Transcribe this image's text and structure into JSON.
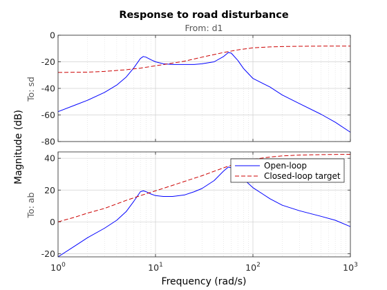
{
  "chart_data": {
    "type": "line",
    "title": "Response to road disturbance",
    "subtitle": "From: d1",
    "xlabel": "Frequency  (rad/s)",
    "ylabel": "Magnitude (dB)",
    "x_scale": "log",
    "x_ticks": [
      1,
      10,
      100,
      1000
    ],
    "x_tick_labels": [
      {
        "base": "10",
        "exp": "0"
      },
      {
        "base": "10",
        "exp": "1"
      },
      {
        "base": "10",
        "exp": "2"
      },
      {
        "base": "10",
        "exp": "3"
      }
    ],
    "xlim": [
      1,
      1000
    ],
    "grid": true,
    "legend_position": "top-right of bottom panel",
    "panels": [
      {
        "row_label": "To: sd",
        "ylim": [
          -80,
          0
        ],
        "y_ticks": [
          -80,
          -60,
          -40,
          -20,
          0
        ],
        "series": [
          {
            "name": "Open-loop",
            "color": "#0000ff",
            "dash": "solid",
            "x": [
              1,
              1.5,
              2,
              3,
              4,
              5,
              6,
              7,
              7.5,
              8,
              9,
              10,
              12,
              15,
              20,
              25,
              30,
              40,
              50,
              56,
              60,
              70,
              80,
              100,
              150,
              200,
              300,
              500,
              700,
              1000
            ],
            "y": [
              -57.5,
              -52.5,
              -49,
              -43,
              -37.5,
              -31.5,
              -24.5,
              -17.5,
              -16,
              -16.5,
              -18.5,
              -20,
              -21.5,
              -22,
              -22,
              -22,
              -21.5,
              -20,
              -16,
              -13,
              -13.5,
              -19,
              -25,
              -32.5,
              -39,
              -45,
              -51.5,
              -59.5,
              -65.5,
              -73
            ]
          },
          {
            "name": "Closed-loop target",
            "color": "#cc0000",
            "dash": "dashed",
            "x": [
              1,
              2,
              3,
              5,
              7,
              10,
              15,
              20,
              30,
              50,
              70,
              100,
              150,
              200,
              300,
              500,
              700,
              1000
            ],
            "y": [
              -28,
              -27.8,
              -27.2,
              -26,
              -24.8,
              -23,
              -21,
              -19.5,
              -16.5,
              -13,
              -11,
              -9.5,
              -8.8,
              -8.5,
              -8.3,
              -8.2,
              -8.2,
              -8.2
            ]
          }
        ]
      },
      {
        "row_label": "To: ab",
        "ylim": [
          -22,
          44
        ],
        "y_ticks": [
          -20,
          0,
          20,
          40
        ],
        "series": [
          {
            "name": "Open-loop",
            "color": "#0000ff",
            "dash": "solid",
            "x": [
              1,
              1.5,
              2,
              3,
              4,
              5,
              6,
              7,
              7.5,
              8,
              9,
              10,
              12,
              15,
              20,
              25,
              30,
              40,
              50,
              56,
              60,
              70,
              80,
              100,
              150,
              200,
              300,
              500,
              700,
              1000
            ],
            "y": [
              -22,
              -15,
              -10,
              -4,
              1,
              6.5,
              13,
              19,
              19.5,
              19,
              17.5,
              16.5,
              16,
              16,
              17,
              19,
              21,
              26,
              32,
              34.5,
              34,
              30.5,
              27,
              21.5,
              14.5,
              10.5,
              7,
              3.5,
              1,
              -3
            ]
          },
          {
            "name": "Closed-loop target",
            "color": "#cc0000",
            "dash": "dashed",
            "x": [
              1,
              1.5,
              2,
              3,
              5,
              7,
              10,
              15,
              20,
              30,
              50,
              70,
              100,
              150,
              200,
              300,
              500,
              1000
            ],
            "y": [
              0,
              3,
              5.5,
              8.5,
              13.5,
              16.5,
              19.5,
              23,
              25.5,
              29,
              34,
              37,
              39.3,
              40.8,
              41.5,
              42,
              42.3,
              42.5
            ]
          }
        ]
      }
    ],
    "legend": [
      "Open-loop",
      "Closed-loop target"
    ]
  }
}
